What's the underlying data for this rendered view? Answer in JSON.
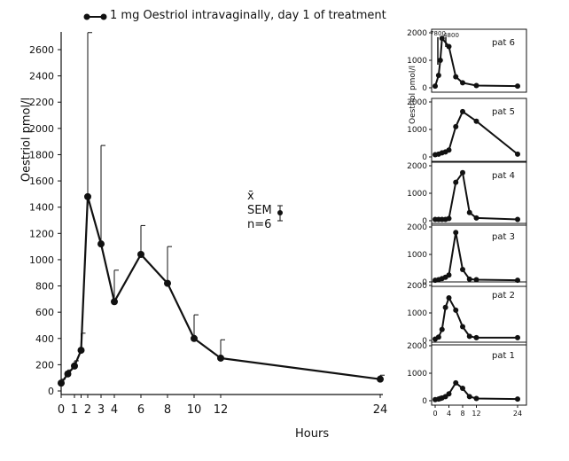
{
  "chart_data": [
    {
      "type": "line",
      "legend": "1 mg Oestriol intravaginally, day 1 of treatment",
      "xlabel": "Hours",
      "ylabel": "Oestriol pmol/l",
      "xticks": [
        "0",
        "1",
        "1.5",
        "2",
        "3",
        "4",
        "6",
        "8",
        "10",
        "12",
        "24"
      ],
      "ylim": [
        0,
        2700
      ],
      "yticks": [
        0,
        200,
        400,
        600,
        800,
        1000,
        1200,
        1400,
        1600,
        1800,
        2000,
        2200,
        2400,
        2600
      ],
      "xlim": [
        0,
        24
      ],
      "series": [
        {
          "name": "1 mg Oestriol intravaginally, day 1 of treatment",
          "x": [
            0,
            0.5,
            1,
            1.5,
            2,
            3,
            4,
            6,
            8,
            10,
            12,
            24
          ],
          "y": [
            60,
            130,
            190,
            310,
            1480,
            1120,
            680,
            1040,
            820,
            400,
            250,
            90
          ],
          "sem_upper": [
            90,
            160,
            230,
            440,
            2730,
            1870,
            920,
            1260,
            1100,
            580,
            390,
            120
          ]
        }
      ],
      "annotation": {
        "mean_symbol": "x̄",
        "sem_label": "SEM",
        "n_label": "n=6"
      }
    },
    {
      "type": "line",
      "title": "pat 6",
      "ylabel": "Oestriol pmol/l",
      "ylim": [
        0,
        2000
      ],
      "yticks": [
        0,
        1000,
        2000
      ],
      "xlim": [
        0,
        24
      ],
      "extra_labels": [
        "7800",
        "4800"
      ],
      "series": [
        {
          "x": [
            0,
            1,
            1.5,
            2,
            4,
            6,
            8,
            12,
            24
          ],
          "y": [
            60,
            450,
            1000,
            1800,
            1500,
            400,
            180,
            80,
            60
          ]
        }
      ]
    },
    {
      "type": "line",
      "title": "pat 5",
      "ylim": [
        0,
        2000
      ],
      "yticks": [
        0,
        1000,
        2000
      ],
      "xlim": [
        0,
        24
      ],
      "series": [
        {
          "x": [
            0,
            1,
            2,
            3,
            4,
            6,
            8,
            12,
            24
          ],
          "y": [
            80,
            100,
            150,
            180,
            250,
            1100,
            1650,
            1300,
            100
          ]
        }
      ]
    },
    {
      "type": "line",
      "title": "pat 4",
      "ylim": [
        0,
        2000
      ],
      "yticks": [
        0,
        1000,
        2000
      ],
      "xlim": [
        0,
        24
      ],
      "series": [
        {
          "x": [
            0,
            1,
            2,
            3,
            4,
            6,
            8,
            10,
            12,
            24
          ],
          "y": [
            50,
            50,
            50,
            50,
            80,
            1400,
            1750,
            300,
            100,
            50
          ]
        }
      ]
    },
    {
      "type": "line",
      "title": "pat 3",
      "ylim": [
        0,
        2000
      ],
      "yticks": [
        0,
        1000,
        2000
      ],
      "xlim": [
        0,
        24
      ],
      "series": [
        {
          "x": [
            0,
            1,
            2,
            3,
            4,
            6,
            8,
            10,
            12,
            24
          ],
          "y": [
            60,
            80,
            120,
            170,
            250,
            1800,
            450,
            100,
            80,
            60
          ]
        }
      ]
    },
    {
      "type": "line",
      "title": "pat 2",
      "ylim": [
        0,
        2000
      ],
      "yticks": [
        0,
        1000,
        2000
      ],
      "xlim": [
        0,
        24
      ],
      "series": [
        {
          "x": [
            0,
            1,
            2,
            3,
            4,
            6,
            8,
            10,
            12,
            24
          ],
          "y": [
            50,
            120,
            400,
            1200,
            1550,
            1100,
            500,
            150,
            100,
            100
          ]
        }
      ]
    },
    {
      "type": "line",
      "title": "pat 1",
      "ylim": [
        0,
        2000
      ],
      "yticks": [
        0,
        1000,
        2000
      ],
      "xlim": [
        0,
        24
      ],
      "xticks": [
        "0",
        "4",
        "8",
        "12",
        "24"
      ],
      "series": [
        {
          "x": [
            0,
            1,
            1.5,
            2,
            3,
            4,
            6,
            8,
            10,
            12,
            24
          ],
          "y": [
            40,
            60,
            80,
            100,
            150,
            250,
            650,
            450,
            150,
            80,
            60
          ]
        }
      ]
    }
  ]
}
